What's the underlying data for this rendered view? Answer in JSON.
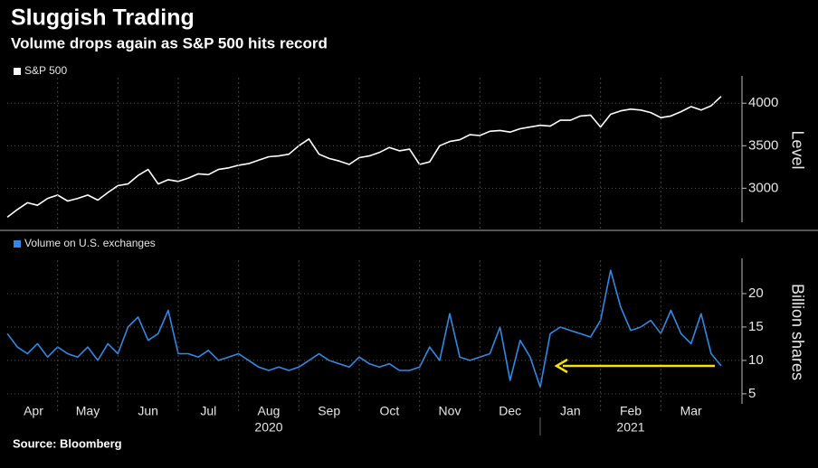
{
  "chart_data": [
    {
      "type": "line",
      "title": "Sluggish Trading",
      "subtitle": "Volume drops again as S&P 500 hits record",
      "categories": [
        "Apr",
        "May",
        "Jun",
        "Jul",
        "Aug",
        "Sep",
        "Oct",
        "Nov",
        "Dec",
        "Jan",
        "Feb",
        "Mar"
      ],
      "years": [
        "2020",
        "2021"
      ],
      "y_label": "Level",
      "series": [
        {
          "name": "S&P 500",
          "color": "#ffffff",
          "values": [
            [
              2660,
              2750,
              2830,
              2800,
              2880,
              2920
            ],
            [
              2850,
              2880,
              2920,
              2860,
              2950,
              3030
            ],
            [
              3050,
              3150,
              3220,
              3050,
              3100,
              3080
            ],
            [
              3120,
              3170,
              3160,
              3220,
              3240,
              3270
            ],
            [
              3290,
              3330,
              3370,
              3380,
              3400,
              3500
            ],
            [
              3580,
              3400,
              3350,
              3320,
              3280,
              3360
            ],
            [
              3380,
              3420,
              3480,
              3440,
              3460,
              3280
            ],
            [
              3310,
              3500,
              3550,
              3570,
              3630,
              3620
            ],
            [
              3670,
              3680,
              3660,
              3700,
              3720,
              3740
            ],
            [
              3730,
              3800,
              3800,
              3850,
              3860,
              3720
            ],
            [
              3870,
              3910,
              3930,
              3920,
              3890,
              3830
            ],
            [
              3850,
              3900,
              3960,
              3920,
              3970,
              4080
            ]
          ]
        }
      ],
      "ylim": [
        2600,
        4300
      ],
      "yticks": [
        3000,
        3500,
        4000
      ],
      "grid": true
    },
    {
      "type": "line",
      "y_label": "Billion shares",
      "series": [
        {
          "name": "Volume on U.S. exchanges",
          "color": "#2f8ae6",
          "values": [
            [
              14,
              12,
              11,
              12.5,
              10.5,
              12
            ],
            [
              11,
              10.5,
              12,
              10,
              12.5,
              11
            ],
            [
              15,
              16.5,
              13,
              14,
              17.5,
              11
            ],
            [
              11,
              10.5,
              11.5,
              10,
              10.5,
              11
            ],
            [
              10,
              9,
              8.5,
              9,
              8.5,
              9
            ],
            [
              10,
              11,
              10,
              9.5,
              9,
              10.5
            ],
            [
              9.5,
              9,
              9.5,
              8.5,
              8.5,
              9
            ],
            [
              12,
              10,
              17,
              10.5,
              10,
              10.5
            ],
            [
              11,
              15,
              7,
              13,
              10.5,
              6
            ],
            [
              14,
              15,
              14.5,
              14,
              13.5,
              16
            ],
            [
              23.5,
              18,
              14.5,
              15,
              16,
              14
            ],
            [
              17.5,
              14,
              12.5,
              17,
              11,
              9.2
            ]
          ]
        }
      ],
      "ylim": [
        3.5,
        25
      ],
      "yticks": [
        5,
        10,
        15,
        20
      ],
      "grid": true,
      "source": "Source: Bloomberg"
    }
  ]
}
